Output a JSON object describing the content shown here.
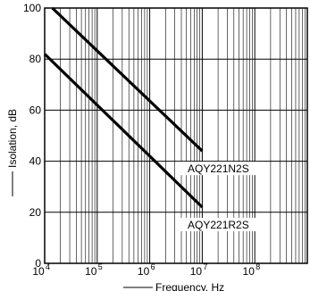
{
  "chart_data": {
    "type": "line",
    "xlabel": "Frequency, Hz",
    "ylabel": "Isolation, dB",
    "x_scale": "log",
    "xlim": [
      10000,
      1000000000
    ],
    "ylim": [
      0,
      100
    ],
    "grid": true,
    "x_ticks": [
      {
        "value": 10000,
        "base": "10",
        "exp": "4"
      },
      {
        "value": 100000,
        "base": "10",
        "exp": "5"
      },
      {
        "value": 1000000,
        "base": "10",
        "exp": "6"
      },
      {
        "value": 10000000,
        "base": "10",
        "exp": "7"
      },
      {
        "value": 100000000,
        "base": "10",
        "exp": "8"
      }
    ],
    "y_ticks": [
      {
        "value": 0,
        "label": "0"
      },
      {
        "value": 20,
        "label": "20"
      },
      {
        "value": 40,
        "label": "40"
      },
      {
        "value": 60,
        "label": "60"
      },
      {
        "value": 80,
        "label": "80"
      },
      {
        "value": 100,
        "label": "100"
      }
    ],
    "series": [
      {
        "name": "AQY221N2S",
        "x": [
          14000,
          10000000
        ],
        "y": [
          100,
          44
        ]
      },
      {
        "name": "AQY221R2S",
        "x": [
          10000,
          10000000
        ],
        "y": [
          82,
          22
        ]
      }
    ],
    "colors": {
      "line": "#000000",
      "grid": "#000000",
      "background": "#ffffff"
    }
  }
}
